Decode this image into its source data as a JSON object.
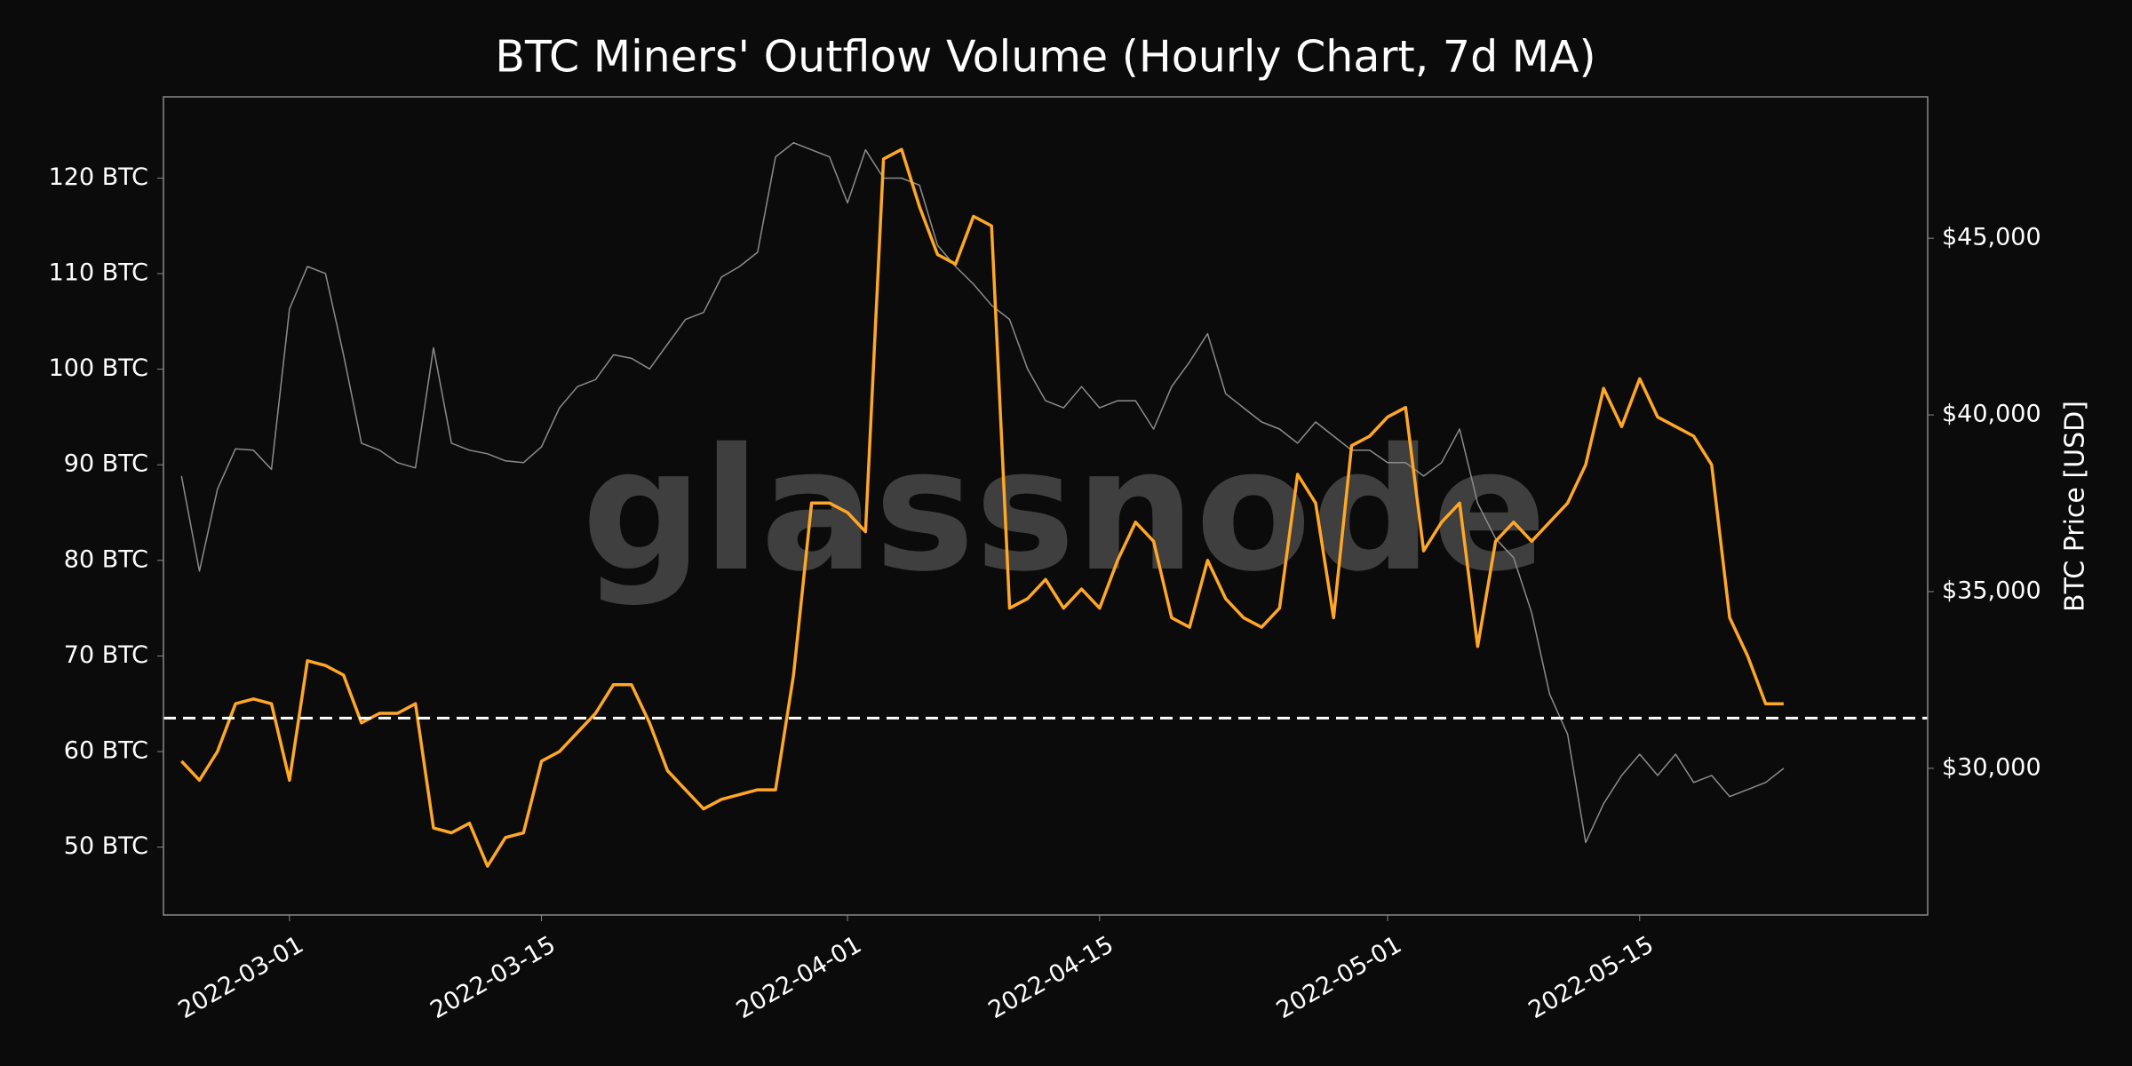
{
  "chart_data": {
    "type": "line",
    "title": "BTC Miners' Outflow Volume (Hourly Chart, 7d MA)",
    "y2_label": "BTC Price [USD]",
    "watermark": "glassnode",
    "x": [
      "2022-02-23",
      "2022-02-24",
      "2022-02-25",
      "2022-02-26",
      "2022-02-27",
      "2022-02-28",
      "2022-03-01",
      "2022-03-02",
      "2022-03-03",
      "2022-03-04",
      "2022-03-05",
      "2022-03-06",
      "2022-03-07",
      "2022-03-08",
      "2022-03-09",
      "2022-03-10",
      "2022-03-11",
      "2022-03-12",
      "2022-03-13",
      "2022-03-14",
      "2022-03-15",
      "2022-03-16",
      "2022-03-17",
      "2022-03-18",
      "2022-03-19",
      "2022-03-20",
      "2022-03-21",
      "2022-03-22",
      "2022-03-23",
      "2022-03-24",
      "2022-03-25",
      "2022-03-26",
      "2022-03-27",
      "2022-03-28",
      "2022-03-29",
      "2022-03-30",
      "2022-03-31",
      "2022-04-01",
      "2022-04-02",
      "2022-04-03",
      "2022-04-04",
      "2022-04-05",
      "2022-04-06",
      "2022-04-07",
      "2022-04-08",
      "2022-04-09",
      "2022-04-10",
      "2022-04-11",
      "2022-04-12",
      "2022-04-13",
      "2022-04-14",
      "2022-04-15",
      "2022-04-16",
      "2022-04-17",
      "2022-04-18",
      "2022-04-19",
      "2022-04-20",
      "2022-04-21",
      "2022-04-22",
      "2022-04-23",
      "2022-04-24",
      "2022-04-25",
      "2022-04-26",
      "2022-04-27",
      "2022-04-28",
      "2022-04-29",
      "2022-04-30",
      "2022-05-01",
      "2022-05-02",
      "2022-05-03",
      "2022-05-04",
      "2022-05-05",
      "2022-05-06",
      "2022-05-07",
      "2022-05-08",
      "2022-05-09",
      "2022-05-10",
      "2022-05-11",
      "2022-05-12",
      "2022-05-13",
      "2022-05-14",
      "2022-05-15",
      "2022-05-16",
      "2022-05-17",
      "2022-05-18",
      "2022-05-19",
      "2022-05-20",
      "2022-05-21",
      "2022-05-22",
      "2022-05-23"
    ],
    "series": [
      {
        "color": "#ffa726",
        "values": [
          59,
          57,
          60,
          65,
          65.5,
          65,
          57,
          69.5,
          69,
          68,
          63,
          64,
          64,
          65,
          52,
          51.5,
          52.5,
          48,
          51,
          51.5,
          59,
          60,
          62,
          64,
          67,
          67,
          63,
          58,
          56,
          54,
          55,
          55.5,
          56,
          56,
          68,
          86,
          86,
          85,
          83,
          122,
          123,
          117,
          112,
          111,
          116,
          115,
          75,
          76,
          78,
          75,
          77,
          75,
          80,
          84,
          82,
          74,
          73,
          80,
          76,
          74,
          73,
          75,
          89,
          86,
          74,
          92,
          93,
          95,
          96,
          81,
          84,
          86,
          71,
          82,
          84,
          82,
          84,
          86,
          90,
          98,
          94,
          99,
          95,
          94,
          93,
          90,
          74,
          70,
          65,
          65
        ]
      },
      {
        "color": "#8c8c8c",
        "axis": "y2",
        "values": [
          38270,
          35580,
          37900,
          39040,
          39000,
          38460,
          43000,
          44200,
          44000,
          41700,
          39200,
          39000,
          38650,
          38500,
          41900,
          39200,
          39000,
          38900,
          38700,
          38650,
          39100,
          40200,
          40800,
          41000,
          41700,
          41600,
          41300,
          42000,
          42700,
          42900,
          43900,
          44200,
          44600,
          47300,
          47700,
          47500,
          47300,
          46000,
          47500,
          46700,
          46700,
          46500,
          44800,
          44200,
          43700,
          43100,
          42700,
          41300,
          40400,
          40200,
          40800,
          40200,
          40400,
          40400,
          39600,
          40800,
          41500,
          42300,
          40600,
          40200,
          39800,
          39600,
          39200,
          39800,
          39400,
          39000,
          39000,
          38650,
          38650,
          38270,
          38650,
          39600,
          37500,
          36500,
          35960,
          34400,
          32100,
          30960,
          27900,
          29000,
          29800,
          30400,
          29800,
          30400,
          29600,
          29800,
          29200,
          29400,
          29600,
          30000
        ]
      }
    ],
    "hline": {
      "value": 63.5,
      "color": "#ffffff",
      "dashed": true
    },
    "xlim": [
      "2022-02-22",
      "2022-05-31"
    ],
    "xticks": [
      "2022-03-01",
      "2022-03-15",
      "2022-04-01",
      "2022-04-15",
      "2022-05-01",
      "2022-05-15"
    ],
    "ylim": [
      42.9,
      128.5
    ],
    "yticks": [
      {
        "value": 50,
        "label": "50 BTC"
      },
      {
        "value": 60,
        "label": "60 BTC"
      },
      {
        "value": 70,
        "label": "70 BTC"
      },
      {
        "value": 80,
        "label": "80 BTC"
      },
      {
        "value": 90,
        "label": "90 BTC"
      },
      {
        "value": 100,
        "label": "100 BTC"
      },
      {
        "value": 110,
        "label": "110 BTC"
      },
      {
        "value": 120,
        "label": "120 BTC"
      }
    ],
    "y2lim": [
      25850,
      49000
    ],
    "y2ticks": [
      {
        "value": 30000,
        "label": "$30,000"
      },
      {
        "value": 35000,
        "label": "$35,000"
      },
      {
        "value": 40000,
        "label": "$40,000"
      },
      {
        "value": 45000,
        "label": "$45,000"
      }
    ],
    "grid": false
  }
}
